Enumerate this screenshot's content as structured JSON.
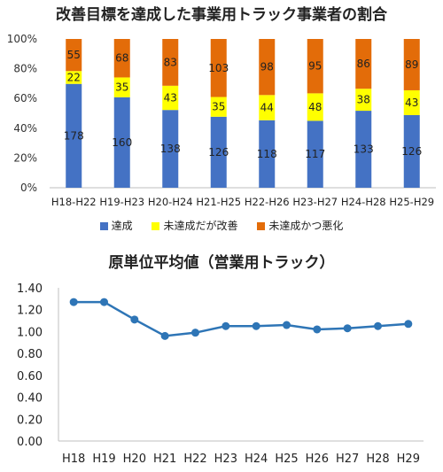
{
  "charts": {
    "stacked": {
      "title": "改善目標を達成した事業用トラック事業者の割合",
      "legend": [
        "達成",
        "未達成だが改善",
        "未達成かつ悪化"
      ]
    },
    "line": {
      "title": "原単位平均値（営業用トラック）"
    }
  },
  "chart_data": [
    {
      "type": "bar",
      "stacked": "percent",
      "title": "改善目標を達成した事業用トラック事業者の割合",
      "categories": [
        "H18-H22",
        "H19-H23",
        "H20-H24",
        "H21-H25",
        "H22-H26",
        "H23-H27",
        "H24-H28",
        "H25-H29"
      ],
      "series": [
        {
          "name": "達成",
          "values": [
            178,
            160,
            138,
            126,
            118,
            117,
            133,
            126
          ],
          "color": "#4472C4"
        },
        {
          "name": "未達成だが改善",
          "values": [
            22,
            35,
            43,
            35,
            44,
            48,
            38,
            43
          ],
          "color": "#FFFF00"
        },
        {
          "name": "未達成かつ悪化",
          "values": [
            55,
            68,
            83,
            103,
            98,
            95,
            86,
            89
          ],
          "color": "#E36C09"
        }
      ],
      "yticks": [
        "0%",
        "20%",
        "40%",
        "60%",
        "80%",
        "100%"
      ],
      "ylim": [
        0,
        100
      ],
      "legend_position": "bottom"
    },
    {
      "type": "line",
      "title": "原単位平均値（営業用トラック）",
      "categories": [
        "H18",
        "H19",
        "H20",
        "H21",
        "H22",
        "H23",
        "H24",
        "H25",
        "H26",
        "H27",
        "H28",
        "H29"
      ],
      "series": [
        {
          "values": [
            1.27,
            1.27,
            1.11,
            0.96,
            0.99,
            1.05,
            1.05,
            1.06,
            1.02,
            1.03,
            1.05,
            1.07
          ],
          "color": "#2E75B6"
        }
      ],
      "yticks": [
        "0.00",
        "0.20",
        "0.40",
        "0.60",
        "0.80",
        "1.00",
        "1.20",
        "1.40"
      ],
      "ylim": [
        0,
        1.4
      ],
      "grid": false
    }
  ]
}
